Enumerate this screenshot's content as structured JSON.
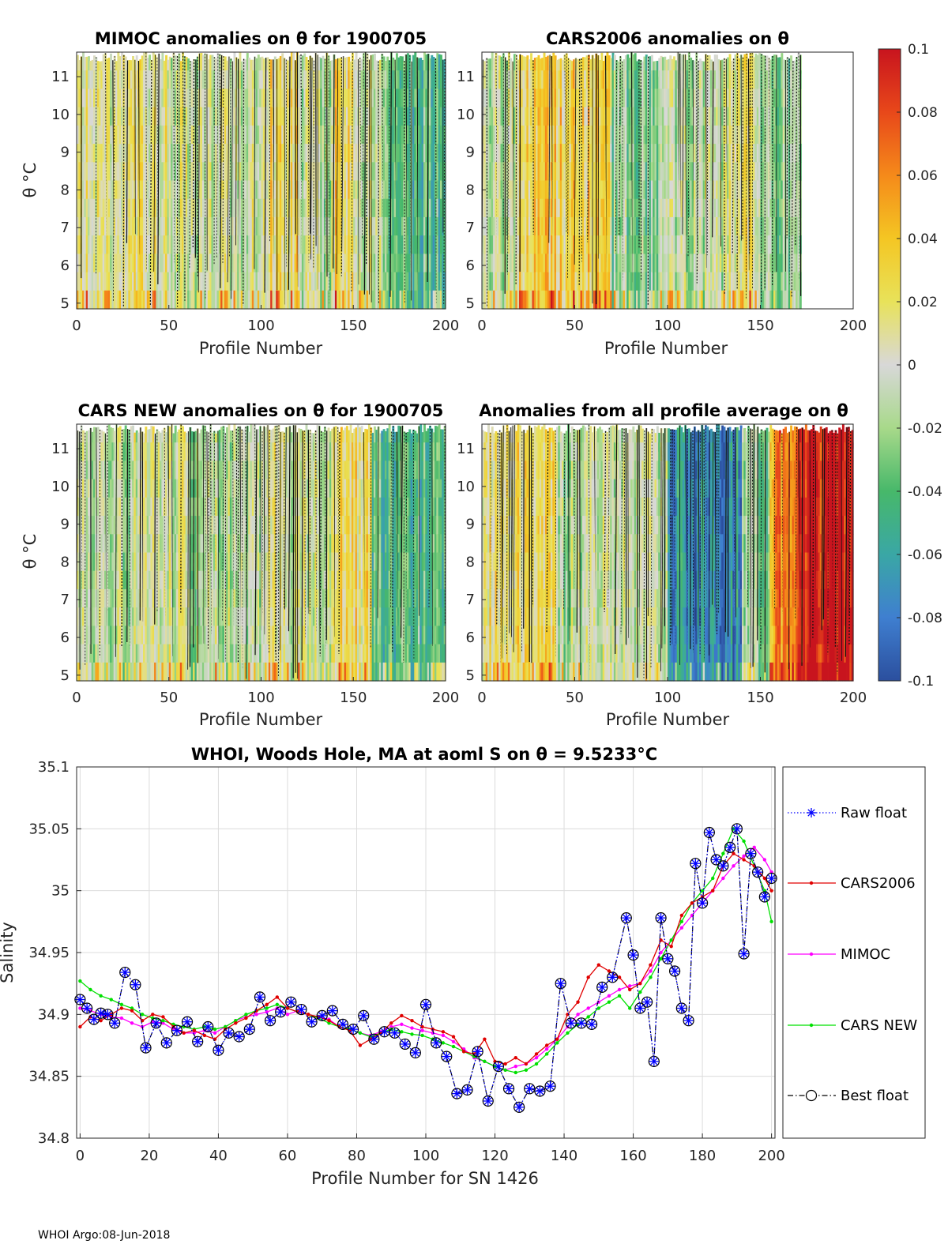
{
  "footer": "WHOI Argo:08-Jun-2018",
  "colorbar": {
    "ticks": [
      "0.1",
      "0.08",
      "0.06",
      "0.04",
      "0.02",
      "0",
      "-0.02",
      "-0.04",
      "-0.06",
      "-0.08",
      "-0.1"
    ],
    "range": [
      -0.1,
      0.1
    ],
    "colormap_stops": [
      "#2b4f9e",
      "#3f7fd0",
      "#3aa7a5",
      "#47b86a",
      "#a8d98a",
      "#d8d8d8",
      "#e8e25a",
      "#f4c623",
      "#f58a1a",
      "#e8481a",
      "#c8141e"
    ]
  },
  "panels": [
    {
      "title": "MIMOC anomalies on θ  for 1900705",
      "xlabel": "Profile Number",
      "ylabel": "θ °C",
      "xticks": [
        "0",
        "50",
        "100",
        "150",
        "200"
      ],
      "yticks": [
        "5",
        "6",
        "7",
        "8",
        "9",
        "10",
        "11"
      ],
      "x_range": [
        0,
        200
      ],
      "y_range": [
        4.85,
        11.65
      ],
      "data_max_profile": 200,
      "profile_groups": [
        {
          "start": 0,
          "end": 20,
          "level": 0.0
        },
        {
          "start": 20,
          "end": 50,
          "level": 0.01
        },
        {
          "start": 50,
          "end": 100,
          "level": 0.0
        },
        {
          "start": 100,
          "end": 120,
          "level": 0.02
        },
        {
          "start": 120,
          "end": 140,
          "level": -0.01
        },
        {
          "start": 140,
          "end": 150,
          "level": 0.03
        },
        {
          "start": 150,
          "end": 165,
          "level": 0.0
        },
        {
          "start": 165,
          "end": 200,
          "level": -0.04
        }
      ]
    },
    {
      "title": "CARS2006 anomalies on θ",
      "xlabel": "Profile Number",
      "ylabel": "",
      "xticks": [
        "0",
        "50",
        "100",
        "150",
        "200"
      ],
      "yticks": [
        "5",
        "6",
        "7",
        "8",
        "9",
        "10",
        "11"
      ],
      "x_range": [
        0,
        200
      ],
      "y_range": [
        4.85,
        11.65
      ],
      "data_max_profile": 172,
      "profile_groups": [
        {
          "start": 0,
          "end": 20,
          "level": -0.01
        },
        {
          "start": 20,
          "end": 70,
          "level": 0.03
        },
        {
          "start": 70,
          "end": 100,
          "level": -0.02
        },
        {
          "start": 100,
          "end": 130,
          "level": -0.01
        },
        {
          "start": 130,
          "end": 150,
          "level": 0.01
        },
        {
          "start": 150,
          "end": 172,
          "level": -0.02
        }
      ]
    },
    {
      "title": "CARS NEW anomalies on θ for 1900705",
      "xlabel": "Profile Number",
      "ylabel": "θ °C",
      "xticks": [
        "0",
        "50",
        "100",
        "150",
        "200"
      ],
      "yticks": [
        "5",
        "6",
        "7",
        "8",
        "9",
        "10",
        "11"
      ],
      "x_range": [
        0,
        200
      ],
      "y_range": [
        4.85,
        11.65
      ],
      "data_max_profile": 200,
      "profile_groups": [
        {
          "start": 0,
          "end": 30,
          "level": -0.01
        },
        {
          "start": 30,
          "end": 60,
          "level": 0.0
        },
        {
          "start": 60,
          "end": 100,
          "level": -0.01
        },
        {
          "start": 100,
          "end": 140,
          "level": 0.0
        },
        {
          "start": 140,
          "end": 160,
          "level": 0.02
        },
        {
          "start": 160,
          "end": 200,
          "level": -0.04
        }
      ]
    },
    {
      "title": "Anomalies from all profile average on θ",
      "xlabel": "Profile Number",
      "ylabel": "",
      "xticks": [
        "0",
        "50",
        "100",
        "150",
        "200"
      ],
      "yticks": [
        "5",
        "6",
        "7",
        "8",
        "9",
        "10",
        "11"
      ],
      "x_range": [
        0,
        200
      ],
      "y_range": [
        4.85,
        11.65
      ],
      "data_max_profile": 200,
      "profile_groups": [
        {
          "start": 0,
          "end": 40,
          "level": 0.02
        },
        {
          "start": 40,
          "end": 100,
          "level": -0.01
        },
        {
          "start": 100,
          "end": 140,
          "level": -0.07
        },
        {
          "start": 140,
          "end": 155,
          "level": -0.02
        },
        {
          "start": 155,
          "end": 170,
          "level": 0.06
        },
        {
          "start": 170,
          "end": 200,
          "level": 0.1
        }
      ]
    }
  ],
  "chart_data": {
    "type": "line",
    "title": "WHOI, Woods Hole, MA at aoml S on θ = 9.5233°C",
    "xlabel": "Profile Number for SN 1426",
    "ylabel": "Salinity",
    "xlim": [
      -1,
      201
    ],
    "ylim": [
      34.8,
      35.1
    ],
    "xticks": [
      "0",
      "20",
      "40",
      "60",
      "80",
      "100",
      "120",
      "140",
      "160",
      "180",
      "200"
    ],
    "yticks": [
      "34.8",
      "34.85",
      "34.9",
      "34.95",
      "35",
      "35.05",
      "35.1"
    ],
    "grid": true,
    "legend_position": "outside-right",
    "series": [
      {
        "name": "Raw float",
        "color": "#0000ff",
        "style": "dotted-asterisk",
        "x": [
          0,
          2,
          4,
          6,
          8,
          10,
          13,
          16,
          19,
          22,
          25,
          28,
          31,
          34,
          37,
          40,
          43,
          46,
          49,
          52,
          55,
          58,
          61,
          64,
          67,
          70,
          73,
          76,
          79,
          82,
          85,
          88,
          91,
          94,
          97,
          100,
          103,
          106,
          109,
          112,
          115,
          118,
          121,
          124,
          127,
          130,
          133,
          136,
          139,
          142,
          145,
          148,
          151,
          154,
          158,
          160,
          162,
          164,
          166,
          168,
          170,
          172,
          174,
          176,
          178,
          180,
          182,
          184,
          186,
          188,
          190,
          192,
          194,
          196,
          198,
          200
        ],
        "y": [
          34.912,
          34.905,
          34.896,
          34.901,
          34.9,
          34.893,
          34.934,
          34.924,
          34.873,
          34.893,
          34.877,
          34.887,
          34.894,
          34.878,
          34.89,
          34.871,
          34.885,
          34.882,
          34.888,
          34.914,
          34.895,
          34.902,
          34.91,
          34.904,
          34.894,
          34.899,
          34.903,
          34.892,
          34.888,
          34.899,
          34.88,
          34.886,
          34.885,
          34.876,
          34.869,
          34.908,
          34.877,
          34.866,
          34.836,
          34.839,
          34.87,
          34.83,
          34.858,
          34.84,
          34.825,
          34.84,
          34.838,
          34.842,
          34.925,
          34.893,
          34.893,
          34.892,
          34.922,
          34.93,
          34.978,
          34.948,
          34.905,
          34.91,
          34.862,
          34.978,
          34.945,
          34.935,
          34.905,
          34.895,
          35.022,
          34.99,
          35.047,
          35.025,
          35.02,
          35.035,
          35.05,
          34.949,
          35.03,
          35.015,
          34.995,
          35.01
        ]
      },
      {
        "name": "CARS2006",
        "color": "#e00000",
        "style": "solid-dot",
        "x": [
          0,
          3,
          6,
          9,
          12,
          15,
          18,
          21,
          24,
          27,
          30,
          33,
          36,
          39,
          42,
          45,
          48,
          51,
          54,
          57,
          60,
          63,
          66,
          69,
          72,
          75,
          78,
          81,
          84,
          87,
          90,
          93,
          96,
          99,
          102,
          105,
          108,
          111,
          114,
          117,
          120,
          123,
          126,
          129,
          132,
          135,
          138,
          141,
          144,
          147,
          150,
          153,
          156,
          159,
          162,
          165,
          168,
          171,
          174,
          177,
          180,
          183,
          186,
          189,
          192,
          195,
          198,
          200
        ],
        "y": [
          34.89,
          34.898,
          34.895,
          34.9,
          34.905,
          34.903,
          34.895,
          34.9,
          34.898,
          34.89,
          34.885,
          34.887,
          34.883,
          34.88,
          34.888,
          34.893,
          34.897,
          34.903,
          34.908,
          34.914,
          34.905,
          34.902,
          34.9,
          34.898,
          34.895,
          34.89,
          34.887,
          34.875,
          34.88,
          34.885,
          34.893,
          34.899,
          34.895,
          34.89,
          34.888,
          34.886,
          34.882,
          34.87,
          34.868,
          34.88,
          34.862,
          34.86,
          34.865,
          34.86,
          34.868,
          34.875,
          34.88,
          34.9,
          34.91,
          34.93,
          34.94,
          34.935,
          34.93,
          34.92,
          34.925,
          34.94,
          34.96,
          34.955,
          34.98,
          34.99,
          34.995,
          35.0,
          35.02,
          35.03,
          35.025,
          35.02,
          35.01,
          35.0
        ]
      },
      {
        "name": "MIMOC",
        "color": "#ff00ff",
        "style": "solid-dot",
        "x": [
          0,
          3,
          6,
          9,
          12,
          15,
          18,
          21,
          24,
          27,
          30,
          33,
          36,
          39,
          42,
          45,
          48,
          51,
          54,
          57,
          60,
          63,
          66,
          69,
          72,
          75,
          78,
          81,
          84,
          87,
          90,
          93,
          96,
          99,
          102,
          105,
          108,
          111,
          114,
          117,
          120,
          123,
          126,
          129,
          132,
          135,
          138,
          141,
          144,
          147,
          150,
          153,
          156,
          159,
          162,
          165,
          168,
          171,
          174,
          177,
          180,
          183,
          186,
          189,
          192,
          195,
          198,
          200
        ],
        "y": [
          34.905,
          34.903,
          34.9,
          34.898,
          34.897,
          34.893,
          34.89,
          34.894,
          34.893,
          34.888,
          34.885,
          34.885,
          34.887,
          34.885,
          34.89,
          34.895,
          34.898,
          34.9,
          34.902,
          34.905,
          34.9,
          34.903,
          34.9,
          34.898,
          34.896,
          34.89,
          34.888,
          34.885,
          34.883,
          34.886,
          34.89,
          34.892,
          34.889,
          34.887,
          34.885,
          34.883,
          34.878,
          34.872,
          34.865,
          34.862,
          34.858,
          34.855,
          34.858,
          34.86,
          34.865,
          34.872,
          34.88,
          34.89,
          34.9,
          34.905,
          34.91,
          34.915,
          34.92,
          34.923,
          34.925,
          34.935,
          34.95,
          34.96,
          34.97,
          34.98,
          34.99,
          35.0,
          35.01,
          35.02,
          35.028,
          35.035,
          35.025,
          35.015
        ]
      },
      {
        "name": "CARS NEW",
        "color": "#00e000",
        "style": "solid-dot",
        "x": [
          0,
          3,
          6,
          9,
          12,
          15,
          18,
          21,
          24,
          27,
          30,
          33,
          36,
          39,
          42,
          45,
          48,
          51,
          54,
          57,
          60,
          63,
          66,
          69,
          72,
          75,
          78,
          81,
          84,
          87,
          90,
          93,
          96,
          99,
          102,
          105,
          108,
          111,
          114,
          117,
          120,
          123,
          126,
          129,
          132,
          135,
          138,
          141,
          144,
          147,
          150,
          153,
          156,
          159,
          162,
          165,
          168,
          171,
          174,
          177,
          180,
          183,
          186,
          189,
          192,
          195,
          198,
          200
        ],
        "y": [
          34.927,
          34.92,
          34.915,
          34.912,
          34.908,
          34.905,
          34.9,
          34.897,
          34.895,
          34.892,
          34.89,
          34.888,
          34.89,
          34.888,
          34.89,
          34.895,
          34.9,
          34.903,
          34.905,
          34.908,
          34.905,
          34.902,
          34.9,
          34.897,
          34.893,
          34.89,
          34.888,
          34.885,
          34.882,
          34.885,
          34.888,
          34.886,
          34.884,
          34.883,
          34.88,
          34.877,
          34.874,
          34.87,
          34.866,
          34.862,
          34.858,
          34.855,
          34.853,
          34.855,
          34.86,
          34.868,
          34.877,
          34.885,
          34.892,
          34.898,
          34.905,
          34.91,
          34.915,
          34.905,
          34.918,
          34.93,
          34.945,
          34.96,
          34.975,
          34.99,
          35.0,
          35.01,
          35.03,
          35.05,
          35.04,
          35.02,
          35.0,
          34.975
        ]
      },
      {
        "name": "Best float",
        "color": "#000000",
        "style": "dashdot-circle",
        "x": [
          0,
          2,
          4,
          6,
          8,
          10,
          13,
          16,
          19,
          22,
          25,
          28,
          31,
          34,
          37,
          40,
          43,
          46,
          49,
          52,
          55,
          58,
          61,
          64,
          67,
          70,
          73,
          76,
          79,
          82,
          85,
          88,
          91,
          94,
          97,
          100,
          103,
          106,
          109,
          112,
          115,
          118,
          121,
          124,
          127,
          130,
          133,
          136,
          139,
          142,
          145,
          148,
          151,
          154,
          158,
          160,
          162,
          164,
          166,
          168,
          170,
          172,
          174,
          176,
          178,
          180,
          182,
          184,
          186,
          188,
          190,
          192,
          194,
          196,
          198,
          200
        ],
        "y": [
          34.912,
          34.905,
          34.896,
          34.901,
          34.9,
          34.893,
          34.934,
          34.924,
          34.873,
          34.893,
          34.877,
          34.887,
          34.894,
          34.878,
          34.89,
          34.871,
          34.885,
          34.882,
          34.888,
          34.914,
          34.895,
          34.902,
          34.91,
          34.904,
          34.894,
          34.899,
          34.903,
          34.892,
          34.888,
          34.899,
          34.88,
          34.886,
          34.885,
          34.876,
          34.869,
          34.908,
          34.877,
          34.866,
          34.836,
          34.839,
          34.87,
          34.83,
          34.858,
          34.84,
          34.825,
          34.84,
          34.838,
          34.842,
          34.925,
          34.893,
          34.893,
          34.892,
          34.922,
          34.93,
          34.978,
          34.948,
          34.905,
          34.91,
          34.862,
          34.978,
          34.945,
          34.935,
          34.905,
          34.895,
          35.022,
          34.99,
          35.047,
          35.025,
          35.02,
          35.035,
          35.05,
          34.949,
          35.03,
          35.015,
          34.995,
          35.01
        ]
      }
    ]
  }
}
